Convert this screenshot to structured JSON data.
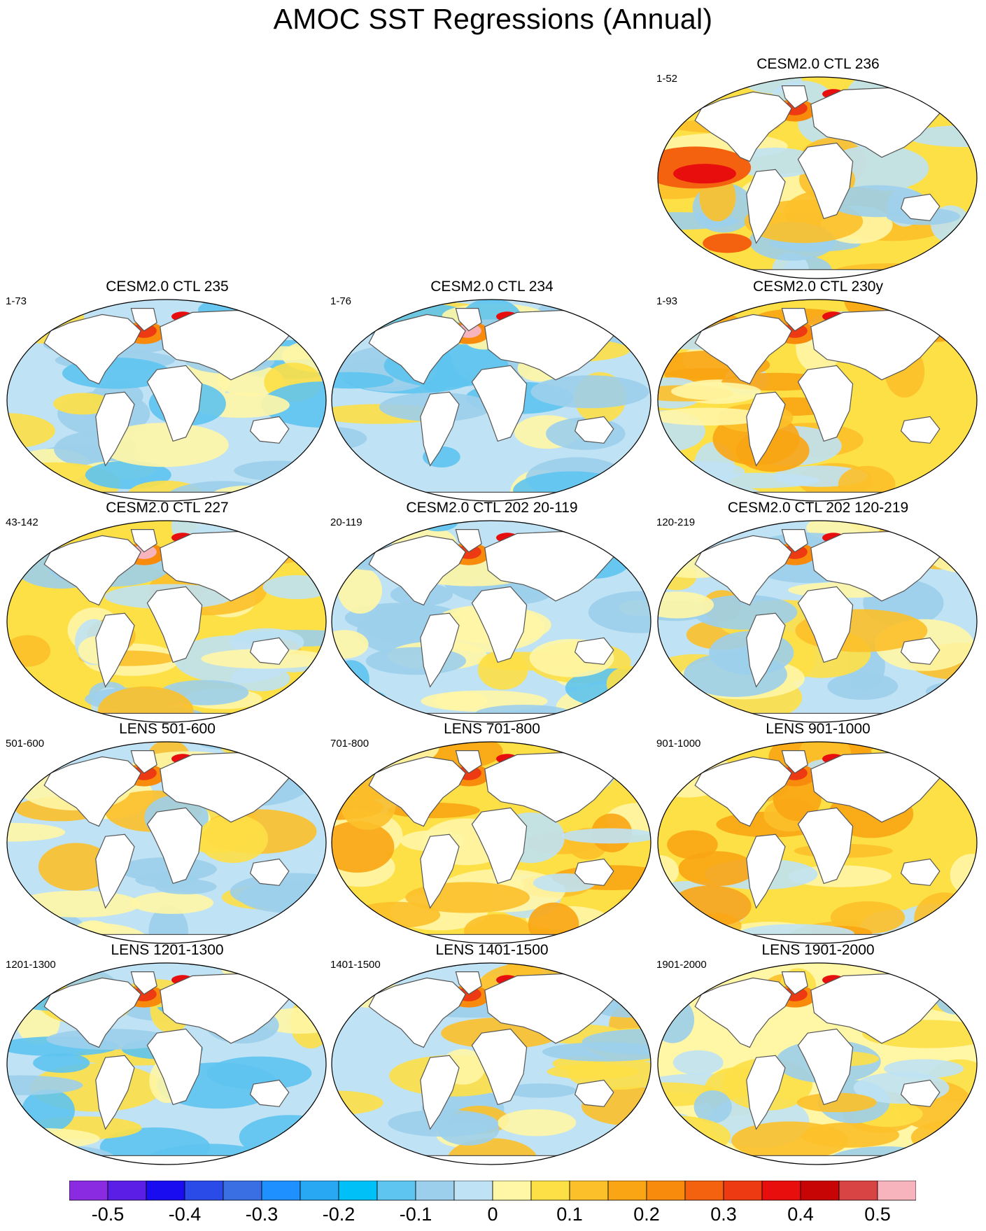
{
  "title": "AMOC SST Regressions (Annual)",
  "panels": [
    {
      "id": "ctl236",
      "title": "CESM2.0 CTL 236",
      "years": "1-52",
      "row": 0,
      "col": 2,
      "palette": "warm-atl-pacific-red"
    },
    {
      "id": "ctl235",
      "title": "CESM2.0 CTL 235",
      "years": "1-73",
      "row": 1,
      "col": 0,
      "palette": "mixed-cool"
    },
    {
      "id": "ctl234",
      "title": "CESM2.0 CTL 234",
      "years": "1-76",
      "row": 1,
      "col": 1,
      "palette": "cool-natl-pink"
    },
    {
      "id": "ctl230y",
      "title": "CESM2.0 CTL 230y",
      "years": "1-93",
      "row": 1,
      "col": 2,
      "palette": "warm"
    },
    {
      "id": "ctl227",
      "title": "CESM2.0 CTL 227",
      "years": "43-142",
      "row": 2,
      "col": 0,
      "palette": "warm-natl-pink"
    },
    {
      "id": "ctl202a",
      "title": "CESM2.0 CTL 202 20-119",
      "years": "20-119",
      "row": 2,
      "col": 1,
      "palette": "cool"
    },
    {
      "id": "ctl202b",
      "title": "CESM2.0 CTL 202 120-219",
      "years": "120-219",
      "row": 2,
      "col": 2,
      "palette": "mixed"
    },
    {
      "id": "lens501",
      "title": "LENS 501-600",
      "years": "501-600",
      "row": 3,
      "col": 0,
      "palette": "mixed"
    },
    {
      "id": "lens701",
      "title": "LENS 701-800",
      "years": "701-800",
      "row": 3,
      "col": 1,
      "palette": "warm"
    },
    {
      "id": "lens901",
      "title": "LENS 901-1000",
      "years": "901-1000",
      "row": 3,
      "col": 2,
      "palette": "warm"
    },
    {
      "id": "lens1201",
      "title": "LENS 1201-1300",
      "years": "1201-1300",
      "row": 4,
      "col": 0,
      "palette": "mixed-cool"
    },
    {
      "id": "lens1401",
      "title": "LENS 1401-1500",
      "years": "1401-1500",
      "row": 4,
      "col": 1,
      "palette": "mixed"
    },
    {
      "id": "lens1901",
      "title": "LENS 1901-2000",
      "years": "1901-2000",
      "row": 4,
      "col": 2,
      "palette": "mixed-warm"
    }
  ],
  "colorbar": {
    "colors": [
      "#8a2be2",
      "#5a1ee6",
      "#1a0cf0",
      "#2a4be8",
      "#3a6fe4",
      "#1e90ff",
      "#28a8f2",
      "#00c0f8",
      "#5ec4f0",
      "#9ccfeb",
      "#bfe2f4",
      "#fff6a6",
      "#fde046",
      "#fcc02a",
      "#faa513",
      "#f88a0c",
      "#f4620f",
      "#ee3a12",
      "#e80e0e",
      "#c70505",
      "#d84444",
      "#f8b4bc"
    ],
    "tick_labels": [
      "-0.5",
      "-0.4",
      "-0.3",
      "-0.2",
      "-0.1",
      "0",
      "0.1",
      "0.2",
      "0.3",
      "0.4",
      "0.5"
    ]
  }
}
